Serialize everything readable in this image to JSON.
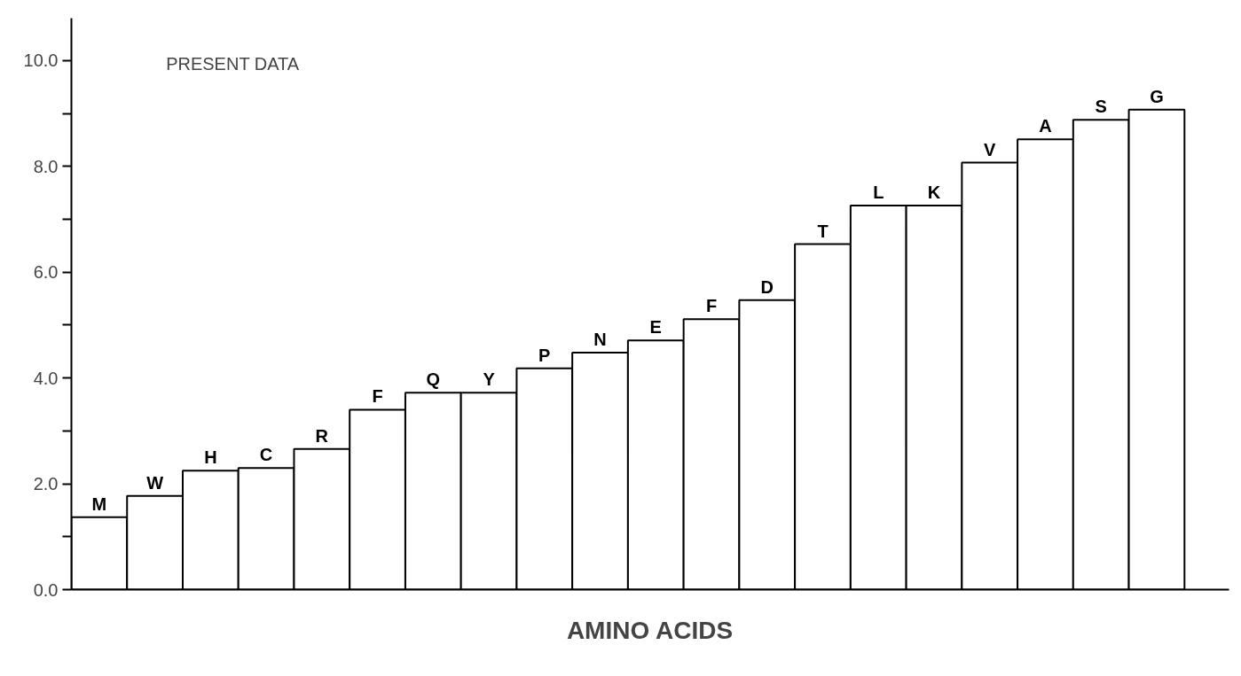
{
  "chart_data": {
    "type": "bar",
    "xlabel": "AMINO ACIDS",
    "categories": [
      "M",
      "W",
      "H",
      "C",
      "R",
      "F",
      "Q",
      "Y",
      "P",
      "N",
      "E",
      "F",
      "D",
      "T",
      "L",
      "K",
      "V",
      "A",
      "S",
      "G"
    ],
    "values": [
      1.37,
      1.77,
      2.25,
      2.3,
      2.66,
      3.4,
      3.72,
      3.72,
      4.18,
      4.48,
      4.71,
      5.11,
      5.47,
      6.53,
      7.26,
      7.26,
      8.07,
      8.51,
      8.88,
      9.07
    ],
    "color": "#ffffff",
    "ylim": [
      0,
      10.8
    ],
    "yticks": [
      {
        "value": 0,
        "label": "0.0"
      },
      {
        "value": 1,
        "label": null
      },
      {
        "value": 2,
        "label": "2.0"
      },
      {
        "value": 3,
        "label": null
      },
      {
        "value": 4,
        "label": "4.0"
      },
      {
        "value": 5,
        "label": null
      },
      {
        "value": 6,
        "label": "6.0"
      },
      {
        "value": 7,
        "label": null
      },
      {
        "value": 8,
        "label": "8.0"
      },
      {
        "value": 9,
        "label": null
      },
      {
        "value": 10,
        "label": "10.0"
      }
    ],
    "grid": false,
    "tick_labels": "y",
    "annotations": [
      "PRESENT DATA"
    ]
  }
}
